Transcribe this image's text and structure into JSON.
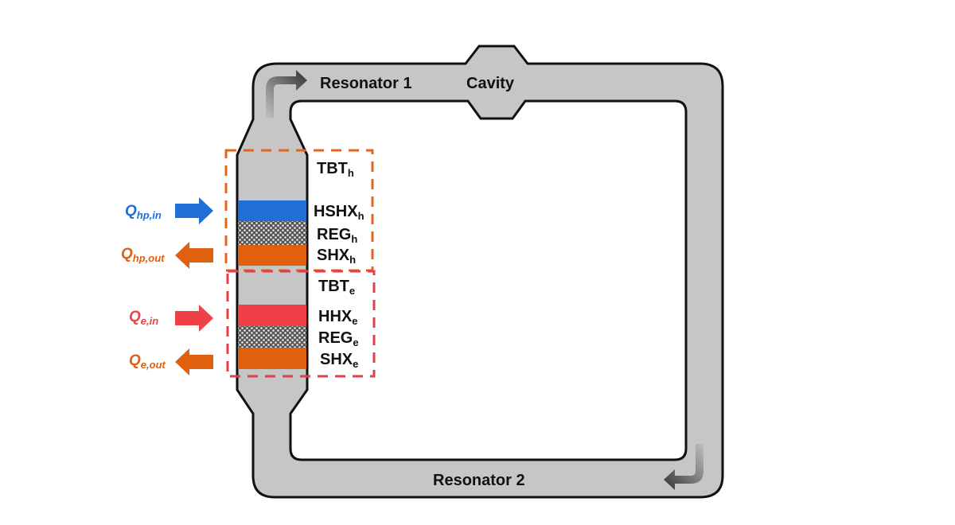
{
  "labels": {
    "resonator1": "Resonator 1",
    "cavity": "Cavity",
    "resonator2": "Resonator 2",
    "tbt_h": {
      "main": "TBT",
      "sub": "h"
    },
    "hshx_h": {
      "main": "HSHX",
      "sub": "h"
    },
    "reg_h": {
      "main": "REG",
      "sub": "h"
    },
    "shx_h": {
      "main": "SHX",
      "sub": "h"
    },
    "tbt_e": {
      "main": "TBT",
      "sub": "e"
    },
    "hhx_e": {
      "main": "HHX",
      "sub": "e"
    },
    "reg_e": {
      "main": "REG",
      "sub": "e"
    },
    "shx_e": {
      "main": "SHX",
      "sub": "e"
    }
  },
  "heat_flows": {
    "q_hp_in": {
      "main": "Q",
      "sub": "hp,in",
      "direction": "in"
    },
    "q_hp_out": {
      "main": "Q",
      "sub": "hp,out",
      "direction": "out"
    },
    "q_e_in": {
      "main": "Q",
      "sub": "e,in",
      "direction": "in"
    },
    "q_e_out": {
      "main": "Q",
      "sub": "e,out",
      "direction": "out"
    }
  },
  "colors": {
    "tube": "#c6c6c6",
    "hot_blue": "#1f6fd6",
    "cold_orange": "#e0600f",
    "hot_red": "#ef4048",
    "box_orange": "#e0661f",
    "box_red": "#e0404a"
  }
}
